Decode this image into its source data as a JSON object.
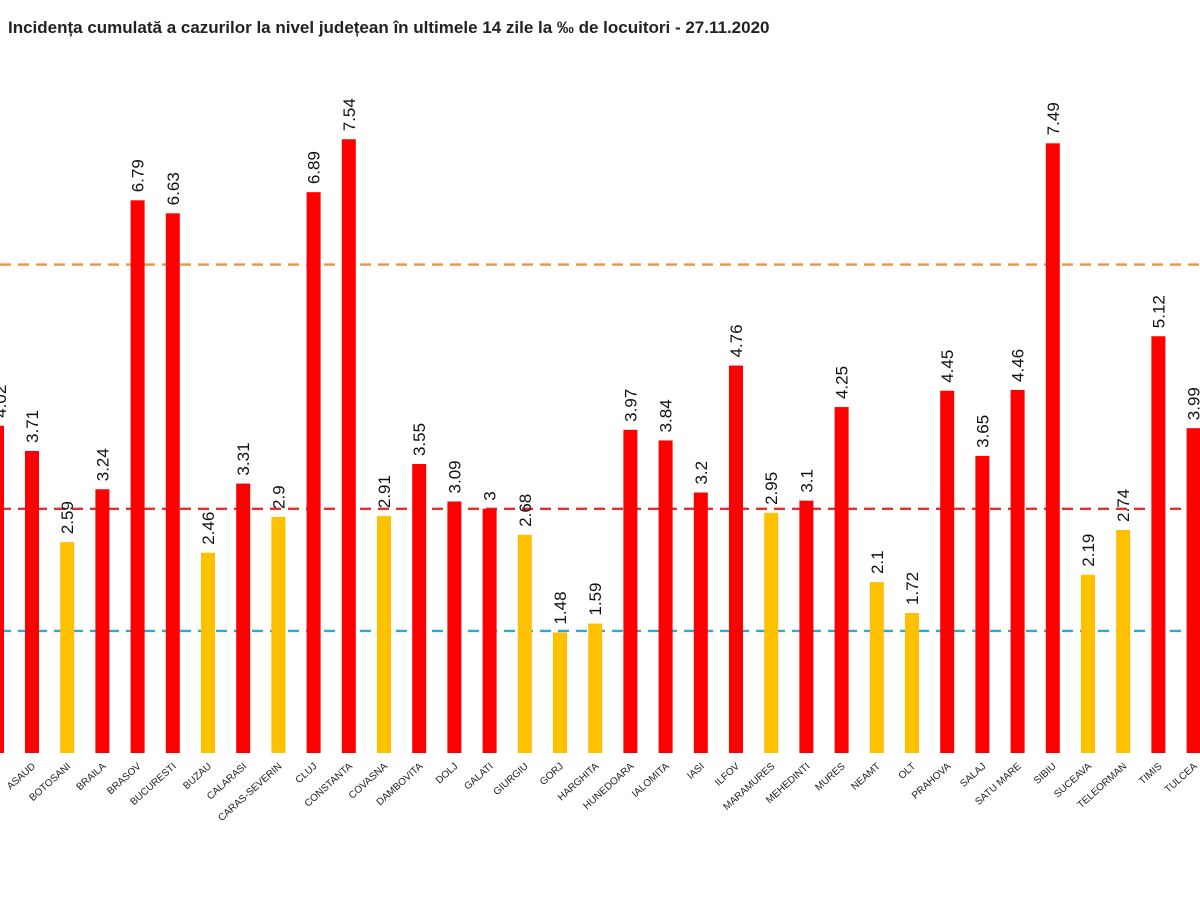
{
  "chart_data": {
    "type": "bar",
    "title": "Incidența cumulată a cazurilor la nivel județean în ultimele 14 zile la ‰ de locuitori - 27.11.2020",
    "xlabel": "",
    "ylabel": "",
    "ylim": [
      0,
      8.3
    ],
    "grid": false,
    "legend": "none",
    "categories": [
      "BISTRITA NASAUD",
      "BOTOSANI",
      "BRAILA",
      "BRASOV",
      "BUCURESTI",
      "BUZAU",
      "CALARASI",
      "CARAS-SEVERIN",
      "CLUJ",
      "CONSTANTA",
      "COVASNA",
      "DAMBOVITA",
      "DOLJ",
      "GALATI",
      "GIURGIU",
      "GORJ",
      "HARGHITA",
      "HUNEDOARA",
      "IALOMITA",
      "IASI",
      "ILFOV",
      "MARAMURES",
      "MEHEDINTI",
      "MURES",
      "NEAMT",
      "OLT",
      "PRAHOVA",
      "SALAJ",
      "SATU MARE",
      "SIBIU",
      "SUCEAVA",
      "TELEORMAN",
      "TIMIS",
      "TULCEA"
    ],
    "category_labels": [
      "ASAUD",
      "BOTOSANI",
      "BRAILA",
      "BRASOV",
      "BUCURESTI",
      "BUZAU",
      "CALARASI",
      "CARAS-SEVERIN",
      "CLUJ",
      "CONSTANTA",
      "COVASNA",
      "DAMBOVITA",
      "DOLJ",
      "GALATI",
      "GIURGIU",
      "GORJ",
      "HARGHITA",
      "HUNEDOARA",
      "IALOMITA",
      "IASI",
      "ILFOV",
      "MARAMURES",
      "MEHEDINTI",
      "MURES",
      "NEAMT",
      "OLT",
      "PRAHOVA",
      "SALAJ",
      "SATU MARE",
      "SIBIU",
      "SUCEAVA",
      "TELEORMAN",
      "TIMIS",
      "TULCEA"
    ],
    "values": [
      3.71,
      2.59,
      3.24,
      6.79,
      6.63,
      2.46,
      3.31,
      2.9,
      6.89,
      7.54,
      2.91,
      3.55,
      3.09,
      3,
      2.68,
      1.48,
      1.59,
      3.97,
      3.84,
      3.2,
      4.76,
      2.95,
      3.1,
      4.25,
      2.1,
      1.72,
      4.45,
      3.65,
      4.46,
      7.49,
      2.19,
      2.74,
      5.12,
      3.99
    ],
    "value_labels": [
      "3.71",
      "2.59",
      "3.24",
      "6.79",
      "6.63",
      "2.46",
      "3.31",
      "2.9",
      "6.89",
      "7.54",
      "2.91",
      "3.55",
      "3.09",
      "3",
      "2.68",
      "1.48",
      "1.59",
      "3.97",
      "3.84",
      "3.2",
      "4.76",
      "2.95",
      "3.1",
      "4.25",
      "2.1",
      "1.72",
      "4.45",
      "3.65",
      "4.46",
      "7.49",
      "2.19",
      "2.74",
      "5.12",
      "3.99"
    ],
    "partial_leading_bar": {
      "value": 4.02,
      "label": "4.02"
    },
    "reference_lines": [
      {
        "value": 6.0,
        "color": "#e8954a",
        "style": "dashed"
      },
      {
        "value": 3.0,
        "color": "#e03030",
        "style": "dashed"
      },
      {
        "value": 1.5,
        "color": "#2fa8d8",
        "style": "dashed"
      }
    ],
    "colors": {
      "above_3": "#ff0000",
      "below_3": "#ffc000"
    }
  }
}
